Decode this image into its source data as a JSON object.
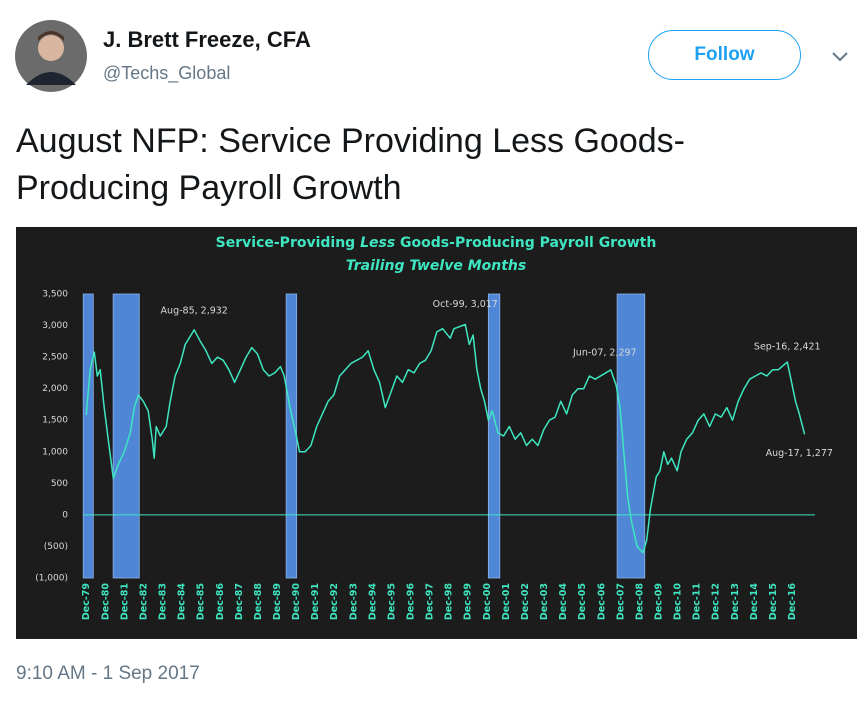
{
  "user": {
    "name": "J. Brett Freeze, CFA",
    "handle": "@Techs_Global"
  },
  "follow_button": "Follow",
  "tweet": {
    "text": "August NFP: Service Providing Less Goods-Producing Payroll Growth",
    "timestamp": "9:10 AM - 1 Sep 2017"
  },
  "chart_data": {
    "type": "line",
    "title_parts": [
      "Service-Providing",
      "Less",
      "Goods-Producing Payroll Growth"
    ],
    "subtitle": "Trailing Twelve Months",
    "series": [
      {
        "color": "#3ee6c1",
        "x": [
          1979.92,
          1980.13,
          1980.34,
          1980.5,
          1980.65,
          1980.86,
          1981.07,
          1981.34,
          1981.6,
          1981.91,
          1982.23,
          1982.44,
          1982.65,
          1982.91,
          1983.17,
          1983.38,
          1983.48,
          1983.59,
          1983.8,
          1984.11,
          1984.32,
          1984.58,
          1984.85,
          1985.11,
          1985.58,
          1985.9,
          1986.2,
          1986.5,
          1986.8,
          1987.1,
          1987.4,
          1987.7,
          1988.0,
          1988.3,
          1988.6,
          1988.9,
          1989.2,
          1989.5,
          1989.8,
          1990.1,
          1990.3,
          1990.6,
          1990.9,
          1991.1,
          1991.4,
          1991.7,
          1992.0,
          1992.3,
          1992.6,
          1992.9,
          1993.2,
          1993.5,
          1993.8,
          1994.1,
          1994.4,
          1994.7,
          1995.0,
          1995.3,
          1995.6,
          1995.9,
          1996.2,
          1996.5,
          1996.8,
          1997.1,
          1997.4,
          1997.7,
          1998.0,
          1998.3,
          1998.6,
          1999.0,
          1999.2,
          1999.79,
          2000.0,
          2000.2,
          2000.4,
          2000.6,
          2000.8,
          2001.0,
          2001.2,
          2001.5,
          2001.8,
          2002.1,
          2002.4,
          2002.7,
          2003.0,
          2003.3,
          2003.6,
          2003.9,
          2004.2,
          2004.5,
          2004.8,
          2005.1,
          2005.4,
          2005.7,
          2006.0,
          2006.3,
          2006.6,
          2007.42,
          2007.7,
          2007.9,
          2008.1,
          2008.3,
          2008.5,
          2008.8,
          2009.1,
          2009.3,
          2009.5,
          2009.8,
          2010.0,
          2010.2,
          2010.4,
          2010.6,
          2010.9,
          2011.1,
          2011.4,
          2011.7,
          2012.0,
          2012.3,
          2012.6,
          2012.9,
          2013.2,
          2013.5,
          2013.8,
          2014.1,
          2014.4,
          2014.7,
          2015.0,
          2015.3,
          2015.6,
          2015.9,
          2016.2,
          2016.67,
          2016.9,
          2017.1,
          2017.3,
          2017.58
        ],
        "values": [
          1580,
          2300,
          2580,
          2200,
          2300,
          1700,
          1200,
          580,
          800,
          1000,
          1300,
          1700,
          1900,
          1800,
          1650,
          1200,
          900,
          1400,
          1250,
          1400,
          1800,
          2200,
          2400,
          2700,
          2932,
          2750,
          2600,
          2400,
          2500,
          2450,
          2300,
          2100,
          2300,
          2500,
          2650,
          2550,
          2300,
          2200,
          2250,
          2350,
          2200,
          1700,
          1300,
          1000,
          1000,
          1100,
          1400,
          1600,
          1800,
          1900,
          2200,
          2300,
          2400,
          2450,
          2500,
          2600,
          2300,
          2100,
          1700,
          1950,
          2200,
          2100,
          2300,
          2250,
          2400,
          2450,
          2600,
          2900,
          2950,
          2800,
          2950,
          3017,
          2700,
          2850,
          2300,
          2000,
          1800,
          1500,
          1650,
          1300,
          1250,
          1400,
          1200,
          1300,
          1100,
          1200,
          1100,
          1350,
          1500,
          1550,
          1800,
          1600,
          1900,
          2000,
          2000,
          2200,
          2150,
          2297,
          2050,
          1700,
          1000,
          300,
          -100,
          -500,
          -600,
          -400,
          100,
          600,
          700,
          1000,
          800,
          900,
          700,
          1000,
          1200,
          1300,
          1500,
          1600,
          1400,
          1600,
          1550,
          1700,
          1500,
          1800,
          2000,
          2150,
          2200,
          2250,
          2200,
          2300,
          2300,
          2421,
          2100,
          1800,
          1600,
          1277
        ]
      }
    ],
    "shaded_spans": [
      [
        1979.76,
        1980.29
      ],
      [
        1981.33,
        1982.7
      ],
      [
        1990.4,
        1990.95
      ],
      [
        2001.0,
        2001.6
      ],
      [
        2007.75,
        2009.2
      ]
    ],
    "span_color": "#4f86d6",
    "annotations": [
      {
        "label": "Aug-85, 2,932",
        "x": 1985.58,
        "y": 2932
      },
      {
        "label": "Oct-99, 3,017",
        "x": 1999.79,
        "y": 3017
      },
      {
        "label": "Jun-07, 2,297",
        "x": 2007.42,
        "y": 2297
      },
      {
        "label": "Sep-16, 2,421",
        "x": 2016.67,
        "y": 2421
      },
      {
        "label": "Aug-17, 1,277",
        "x": 2017.58,
        "y": 1277
      }
    ],
    "xlim": [
      1979.75,
      2017.6
    ],
    "xticks": [
      {
        "value": 1979.92,
        "label": "Dec-79"
      },
      {
        "value": 1980.92,
        "label": "Dec-80"
      },
      {
        "value": 1981.92,
        "label": "Dec-81"
      },
      {
        "value": 1982.92,
        "label": "Dec-82"
      },
      {
        "value": 1983.92,
        "label": "Dec-83"
      },
      {
        "value": 1984.92,
        "label": "Dec-84"
      },
      {
        "value": 1985.92,
        "label": "Dec-85"
      },
      {
        "value": 1986.92,
        "label": "Dec-86"
      },
      {
        "value": 1987.92,
        "label": "Dec-87"
      },
      {
        "value": 1988.92,
        "label": "Dec-88"
      },
      {
        "value": 1989.92,
        "label": "Dec-89"
      },
      {
        "value": 1990.92,
        "label": "Dec-90"
      },
      {
        "value": 1991.92,
        "label": "Dec-91"
      },
      {
        "value": 1992.92,
        "label": "Dec-92"
      },
      {
        "value": 1993.92,
        "label": "Dec-93"
      },
      {
        "value": 1994.92,
        "label": "Dec-94"
      },
      {
        "value": 1995.92,
        "label": "Dec-95"
      },
      {
        "value": 1996.92,
        "label": "Dec-96"
      },
      {
        "value": 1997.92,
        "label": "Dec-97"
      },
      {
        "value": 1998.92,
        "label": "Dec-98"
      },
      {
        "value": 1999.92,
        "label": "Dec-99"
      },
      {
        "value": 2000.92,
        "label": "Dec-00"
      },
      {
        "value": 2001.92,
        "label": "Dec-01"
      },
      {
        "value": 2002.92,
        "label": "Dec-02"
      },
      {
        "value": 2003.92,
        "label": "Dec-03"
      },
      {
        "value": 2004.92,
        "label": "Dec-04"
      },
      {
        "value": 2005.92,
        "label": "Dec-05"
      },
      {
        "value": 2006.92,
        "label": "Dec-06"
      },
      {
        "value": 2007.92,
        "label": "Dec-07"
      },
      {
        "value": 2008.92,
        "label": "Dec-08"
      },
      {
        "value": 2009.92,
        "label": "Dec-09"
      },
      {
        "value": 2010.92,
        "label": "Dec-10"
      },
      {
        "value": 2011.92,
        "label": "Dec-11"
      },
      {
        "value": 2012.92,
        "label": "Dec-12"
      },
      {
        "value": 2013.92,
        "label": "Dec-13"
      },
      {
        "value": 2014.92,
        "label": "Dec-14"
      },
      {
        "value": 2015.92,
        "label": "Dec-15"
      },
      {
        "value": 2016.92,
        "label": "Dec-16"
      }
    ],
    "ylim": [
      -1000,
      3500
    ],
    "yticks": [
      {
        "value": -1000,
        "label": "(1,000)"
      },
      {
        "value": -500,
        "label": "(500)"
      },
      0,
      500,
      {
        "value": 1000,
        "label": "1,000"
      },
      {
        "value": 1500,
        "label": "1,500"
      },
      {
        "value": 2000,
        "label": "2,000"
      },
      {
        "value": 2500,
        "label": "2,500"
      },
      {
        "value": 3000,
        "label": "3,000"
      },
      {
        "value": 3500,
        "label": "3,500"
      }
    ],
    "grid": false
  }
}
